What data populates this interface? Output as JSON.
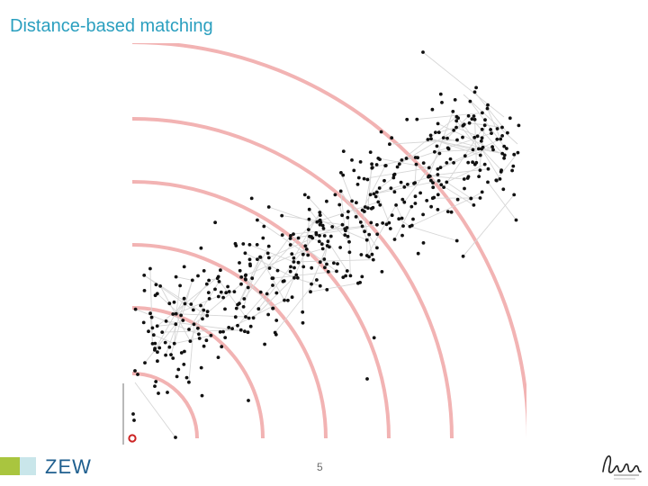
{
  "slide": {
    "title": "Distance-based matching",
    "page_number": "5"
  },
  "footer": {
    "logo_text": "ZEW"
  },
  "diagram": {
    "ring_color": "#f2b3b3",
    "point_color": "#111111",
    "edge_color": "#d6d6d6",
    "origin_color": "#cc2222",
    "ring_count": 6,
    "point_count": 480
  }
}
